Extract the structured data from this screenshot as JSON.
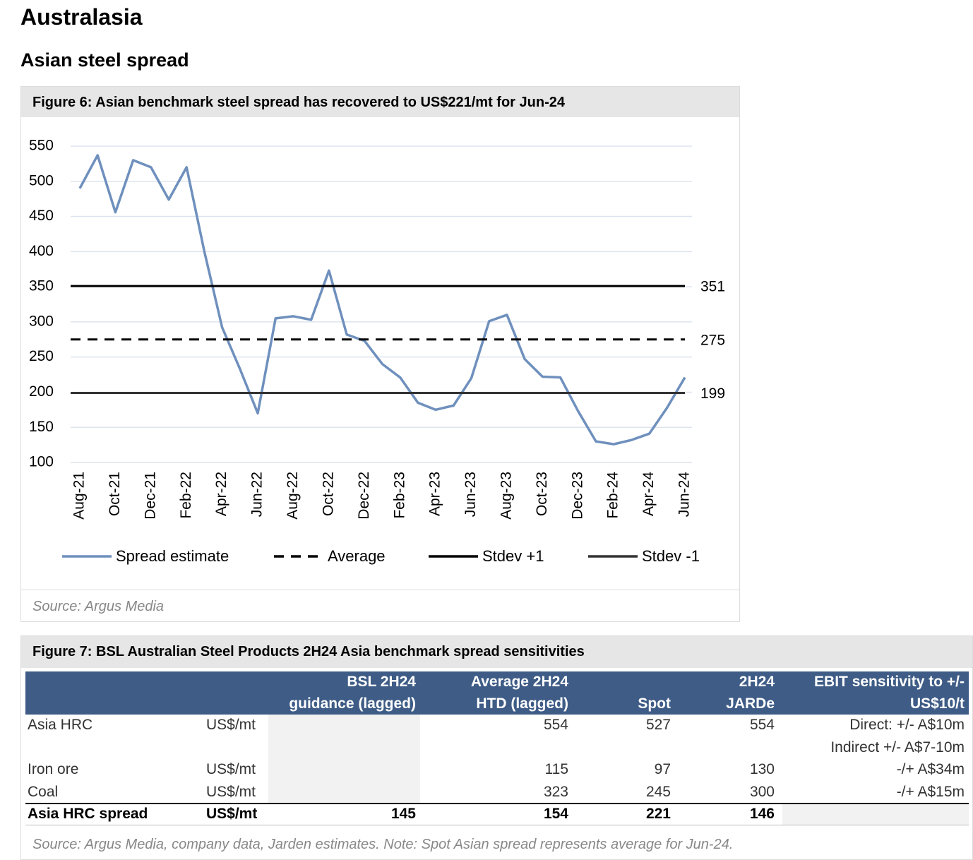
{
  "heading": "Australasia",
  "subheading": "Asian steel spread",
  "figure6": {
    "title": "Figure 6: Asian benchmark steel spread has recovered to US$221/mt for Jun-24",
    "source": "Source: Argus Media"
  },
  "chart_data": {
    "type": "line",
    "categories": [
      "Aug-21",
      null,
      "Oct-21",
      null,
      "Dec-21",
      null,
      "Feb-22",
      null,
      "Apr-22",
      null,
      "Jun-22",
      null,
      "Aug-22",
      null,
      "Oct-22",
      null,
      "Dec-22",
      null,
      "Feb-23",
      null,
      "Apr-23",
      null,
      "Jun-23",
      null,
      "Aug-23",
      null,
      "Oct-23",
      null,
      "Dec-23",
      null,
      "Feb-24",
      null,
      "Apr-24",
      null,
      "Jun-24"
    ],
    "series": [
      {
        "name": "Spread estimate",
        "color": "#6f90bd",
        "values": [
          490,
          537,
          456,
          530,
          520,
          474,
          520,
          400,
          292,
          233,
          170,
          305,
          308,
          303,
          373,
          282,
          273,
          240,
          221,
          185,
          175,
          181,
          220,
          301,
          310,
          247,
          222,
          221,
          173,
          130,
          126,
          132,
          141,
          178,
          221
        ]
      },
      {
        "name": "Average",
        "color": "#000000",
        "dash": true,
        "value": 275
      },
      {
        "name": "Stdev +1",
        "color": "#000000",
        "value": 351
      },
      {
        "name": "Stdev -1",
        "color": "#333333",
        "value": 199
      }
    ],
    "ylim": [
      100,
      550
    ],
    "yticks": [
      100,
      150,
      200,
      250,
      300,
      350,
      400,
      450,
      500,
      550
    ],
    "grid": true,
    "legend": "bottom"
  },
  "figure7": {
    "title": "Figure 7: BSL Australian Steel Products 2H24 Asia benchmark spread sensitivities",
    "table": {
      "columns": [
        [
          "BSL 2H24",
          "guidance (lagged)"
        ],
        [
          "Average 2H24",
          "HTD (lagged)"
        ],
        [
          "Spot"
        ],
        [
          "2H24",
          "JARDe"
        ],
        [
          "EBIT sensitivity  to +/-",
          "US$10/t"
        ]
      ],
      "rows": [
        {
          "label": "Asia HRC",
          "unit": "US$/mt",
          "average": 554,
          "spot": 527,
          "jarde": 554,
          "ebit": [
            "Direct: +/- A$10m",
            "Indirect +/- A$7-10m"
          ]
        },
        {
          "label": "Iron ore",
          "unit": "US$/mt",
          "average": 115,
          "spot": 97,
          "jarde": 130,
          "ebit": [
            "-/+ A$34m"
          ]
        },
        {
          "label": "Coal",
          "unit": "US$/mt",
          "average": 323,
          "spot": 245,
          "jarde": 300,
          "ebit": [
            "-/+ A$15m"
          ]
        }
      ],
      "total": {
        "label": "Asia HRC spread",
        "unit": "US$/mt",
        "guidance": 145,
        "average": 154,
        "spot": 221,
        "jarde": 146
      }
    },
    "source": "Source: Argus Media, company data, Jarden estimates. Note: Spot Asian spread represents average for Jun-24."
  }
}
